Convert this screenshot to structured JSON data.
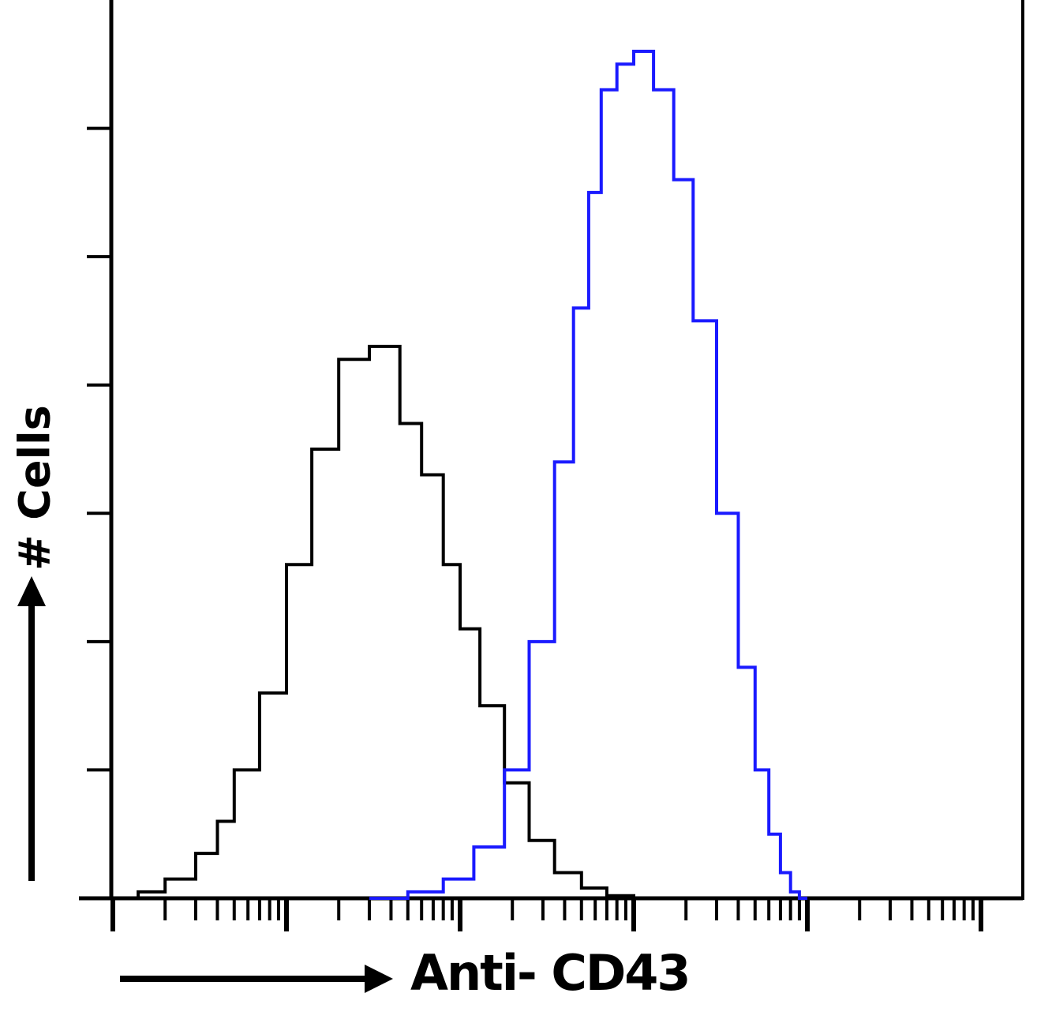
{
  "chart_data": {
    "type": "line",
    "xlabel": "Anti- CD43",
    "ylabel": "# Cells",
    "x_scale": "log",
    "xlim": [
      1,
      100000
    ],
    "ylim": [
      0,
      7
    ],
    "grid": false,
    "legend": "none",
    "series": [
      {
        "color": "#000000",
        "x": [
          1,
          1.4,
          2,
          3,
          4,
          5,
          7,
          10,
          14,
          20,
          30,
          45,
          60,
          80,
          100,
          130,
          180,
          250,
          350,
          500,
          700,
          1000,
          1400,
          2000
        ],
        "y": [
          0,
          0.05,
          0.15,
          0.35,
          0.6,
          1.0,
          1.6,
          2.6,
          3.5,
          4.2,
          4.3,
          3.7,
          3.3,
          2.6,
          2.1,
          1.5,
          0.9,
          0.45,
          0.2,
          0.08,
          0.02,
          0,
          0,
          0
        ]
      },
      {
        "color": "#1a1aff",
        "x": [
          30,
          50,
          80,
          120,
          180,
          250,
          350,
          450,
          550,
          650,
          800,
          1000,
          1300,
          1700,
          2200,
          3000,
          4000,
          5000,
          6000,
          7000,
          8000,
          9000,
          10000
        ],
        "y": [
          0,
          0.05,
          0.15,
          0.4,
          1.0,
          2.0,
          3.4,
          4.6,
          5.5,
          6.3,
          6.5,
          6.6,
          6.3,
          5.6,
          4.5,
          3.0,
          1.8,
          1.0,
          0.5,
          0.2,
          0.05,
          0,
          0
        ]
      }
    ]
  }
}
